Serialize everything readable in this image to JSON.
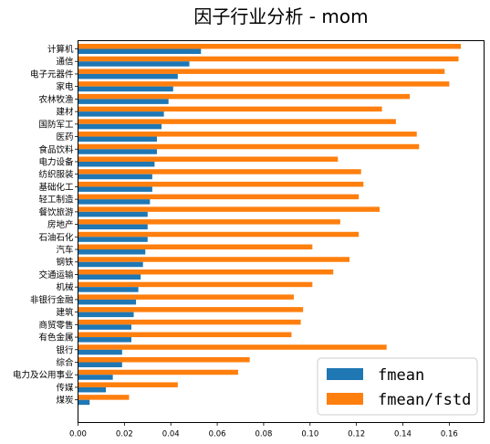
{
  "chart_data": {
    "type": "bar",
    "orientation": "horizontal",
    "title": "因子行业分析 - mom",
    "categories": [
      "计算机",
      "通信",
      "电子元器件",
      "家电",
      "农林牧渔",
      "建材",
      "国防军工",
      "医药",
      "食品饮料",
      "电力设备",
      "纺织服装",
      "基础化工",
      "轻工制造",
      "餐饮旅游",
      "房地产",
      "石油石化",
      "汽车",
      "钢铁",
      "交通运输",
      "机械",
      "非银行金融",
      "建筑",
      "商贸零售",
      "有色金属",
      "银行",
      "综合",
      "电力及公用事业",
      "传媒",
      "煤炭"
    ],
    "series": [
      {
        "name": "fmean",
        "color": "#1f77b4",
        "values": [
          0.053,
          0.048,
          0.043,
          0.041,
          0.039,
          0.037,
          0.036,
          0.034,
          0.034,
          0.033,
          0.032,
          0.032,
          0.031,
          0.03,
          0.03,
          0.03,
          0.029,
          0.028,
          0.027,
          0.026,
          0.025,
          0.024,
          0.023,
          0.023,
          0.019,
          0.019,
          0.015,
          0.012,
          0.005
        ]
      },
      {
        "name": "fmean/fstd",
        "color": "#ff7f0e",
        "values": [
          0.165,
          0.164,
          0.158,
          0.16,
          0.143,
          0.131,
          0.137,
          0.146,
          0.147,
          0.112,
          0.122,
          0.123,
          0.121,
          0.13,
          0.113,
          0.121,
          0.101,
          0.117,
          0.11,
          0.101,
          0.093,
          0.097,
          0.096,
          0.092,
          0.133,
          0.074,
          0.069,
          0.043,
          0.022
        ]
      }
    ],
    "xlim": [
      0,
      0.175
    ],
    "xticks": [
      "0.00",
      "0.02",
      "0.04",
      "0.06",
      "0.08",
      "0.10",
      "0.12",
      "0.14",
      "0.16"
    ],
    "legend_position": "lower-right",
    "grid": false
  }
}
